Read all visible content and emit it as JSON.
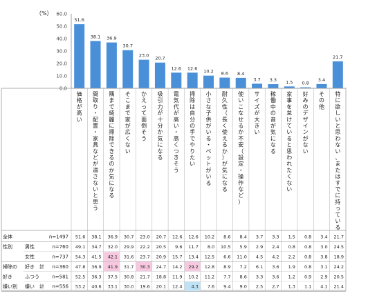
{
  "chart_data": {
    "type": "bar",
    "unit_label": "（%）",
    "ylim": [
      0,
      60
    ],
    "yticks": [
      "0.0",
      "10.0",
      "20.0",
      "30.0",
      "40.0",
      "50.0",
      "60.0"
    ],
    "bar_color": "#4a90d9",
    "highlight_high": "#f7c8e0",
    "highlight_low": "#bfe3f5",
    "categories": [
      "価格が高い",
      "間取り・配置・家具などが適さないと思う",
      "隅まで綺麗に掃除できるのか気になる",
      "そこまで家が広くない",
      "かえって面倒そう",
      "吸引力が十分か気になる",
      "電気代が高い・高くつきそう",
      "掃除は自分の手でやりたい",
      "小さな子供がいる・ペットがいる",
      "耐久性（長く使えるか）が気になる",
      "使いこなせるか不安（設定・操作など）",
      "サイズが大きい",
      "稼働中の音が気になる",
      "家事を怠けていると思われたくない",
      "好みのデザインがない",
      "その他",
      "特に欲しいと思わない、またはすでに持っている"
    ],
    "values": [
      51.6,
      38.1,
      36.9,
      30.7,
      23.0,
      20.7,
      12.6,
      12.6,
      10.2,
      8.6,
      8.4,
      3.7,
      3.3,
      1.5,
      0.8,
      3.4,
      21.7
    ],
    "value_labels": [
      "51.6",
      "38.1",
      "36.9",
      "30.7",
      "23.0",
      "20.7",
      "12.6",
      "12.6",
      "10.2",
      "8.6",
      "8.4",
      "3.7",
      "3.3",
      "1.5",
      "0.8",
      "3.4",
      "21.7"
    ],
    "table": [
      {
        "group": "",
        "label": "全体",
        "n": "n=1497",
        "values": [
          "51.6",
          "38.1",
          "36.9",
          "30.7",
          "23.0",
          "20.7",
          "12.6",
          "12.6",
          "10.2",
          "8.6",
          "8.4",
          "3.7",
          "3.3",
          "1.5",
          "0.8",
          "3.4",
          "21.7"
        ],
        "hl": {}
      },
      {
        "group": "性別",
        "label": "男性",
        "n": "n=760",
        "values": [
          "49.1",
          "34.7",
          "32.0",
          "29.9",
          "22.2",
          "20.5",
          "9.6",
          "11.7",
          "8.0",
          "10.5",
          "5.9",
          "2.9",
          "2.4",
          "0.8",
          "0.8",
          "3.0",
          "24.5"
        ],
        "hl": {}
      },
      {
        "group": "",
        "label": "女性",
        "n": "n=737",
        "values": [
          "54.3",
          "41.5",
          "42.1",
          "31.6",
          "23.7",
          "20.9",
          "15.7",
          "13.4",
          "12.5",
          "6.6",
          "11.0",
          "4.5",
          "4.2",
          "2.2",
          "0.8",
          "3.8",
          "18.9"
        ],
        "hl": {
          "2": "high"
        }
      },
      {
        "group": "掃除の",
        "label": "好き　計",
        "n": "n=360",
        "values": [
          "47.8",
          "36.9",
          "41.9",
          "31.7",
          "30.3",
          "24.7",
          "14.2",
          "29.2",
          "12.8",
          "8.9",
          "7.2",
          "6.1",
          "3.6",
          "1.9",
          "0.8",
          "3.1",
          "24.2"
        ],
        "hl": {
          "2": "high",
          "4": "high",
          "7": "high"
        }
      },
      {
        "group": "好き",
        "label": "ふつう",
        "n": "n=581",
        "values": [
          "52.5",
          "36.3",
          "37.5",
          "30.8",
          "21.7",
          "18.8",
          "11.9",
          "10.2",
          "11.2",
          "7.7",
          "8.6",
          "3.3",
          "3.6",
          "1.2",
          "0.9",
          "2.9",
          "20.5"
        ],
        "hl": {}
      },
      {
        "group": "嫌い別",
        "label": "嫌い　計",
        "n": "n=556",
        "values": [
          "53.2",
          "40.6",
          "33.1",
          "30.0",
          "19.6",
          "20.1",
          "12.4",
          "4.3",
          "7.6",
          "9.4",
          "9.0",
          "2.5",
          "2.7",
          "1.3",
          "1.1",
          "4.1",
          "21.4"
        ],
        "hl": {
          "7": "low"
        }
      }
    ]
  }
}
